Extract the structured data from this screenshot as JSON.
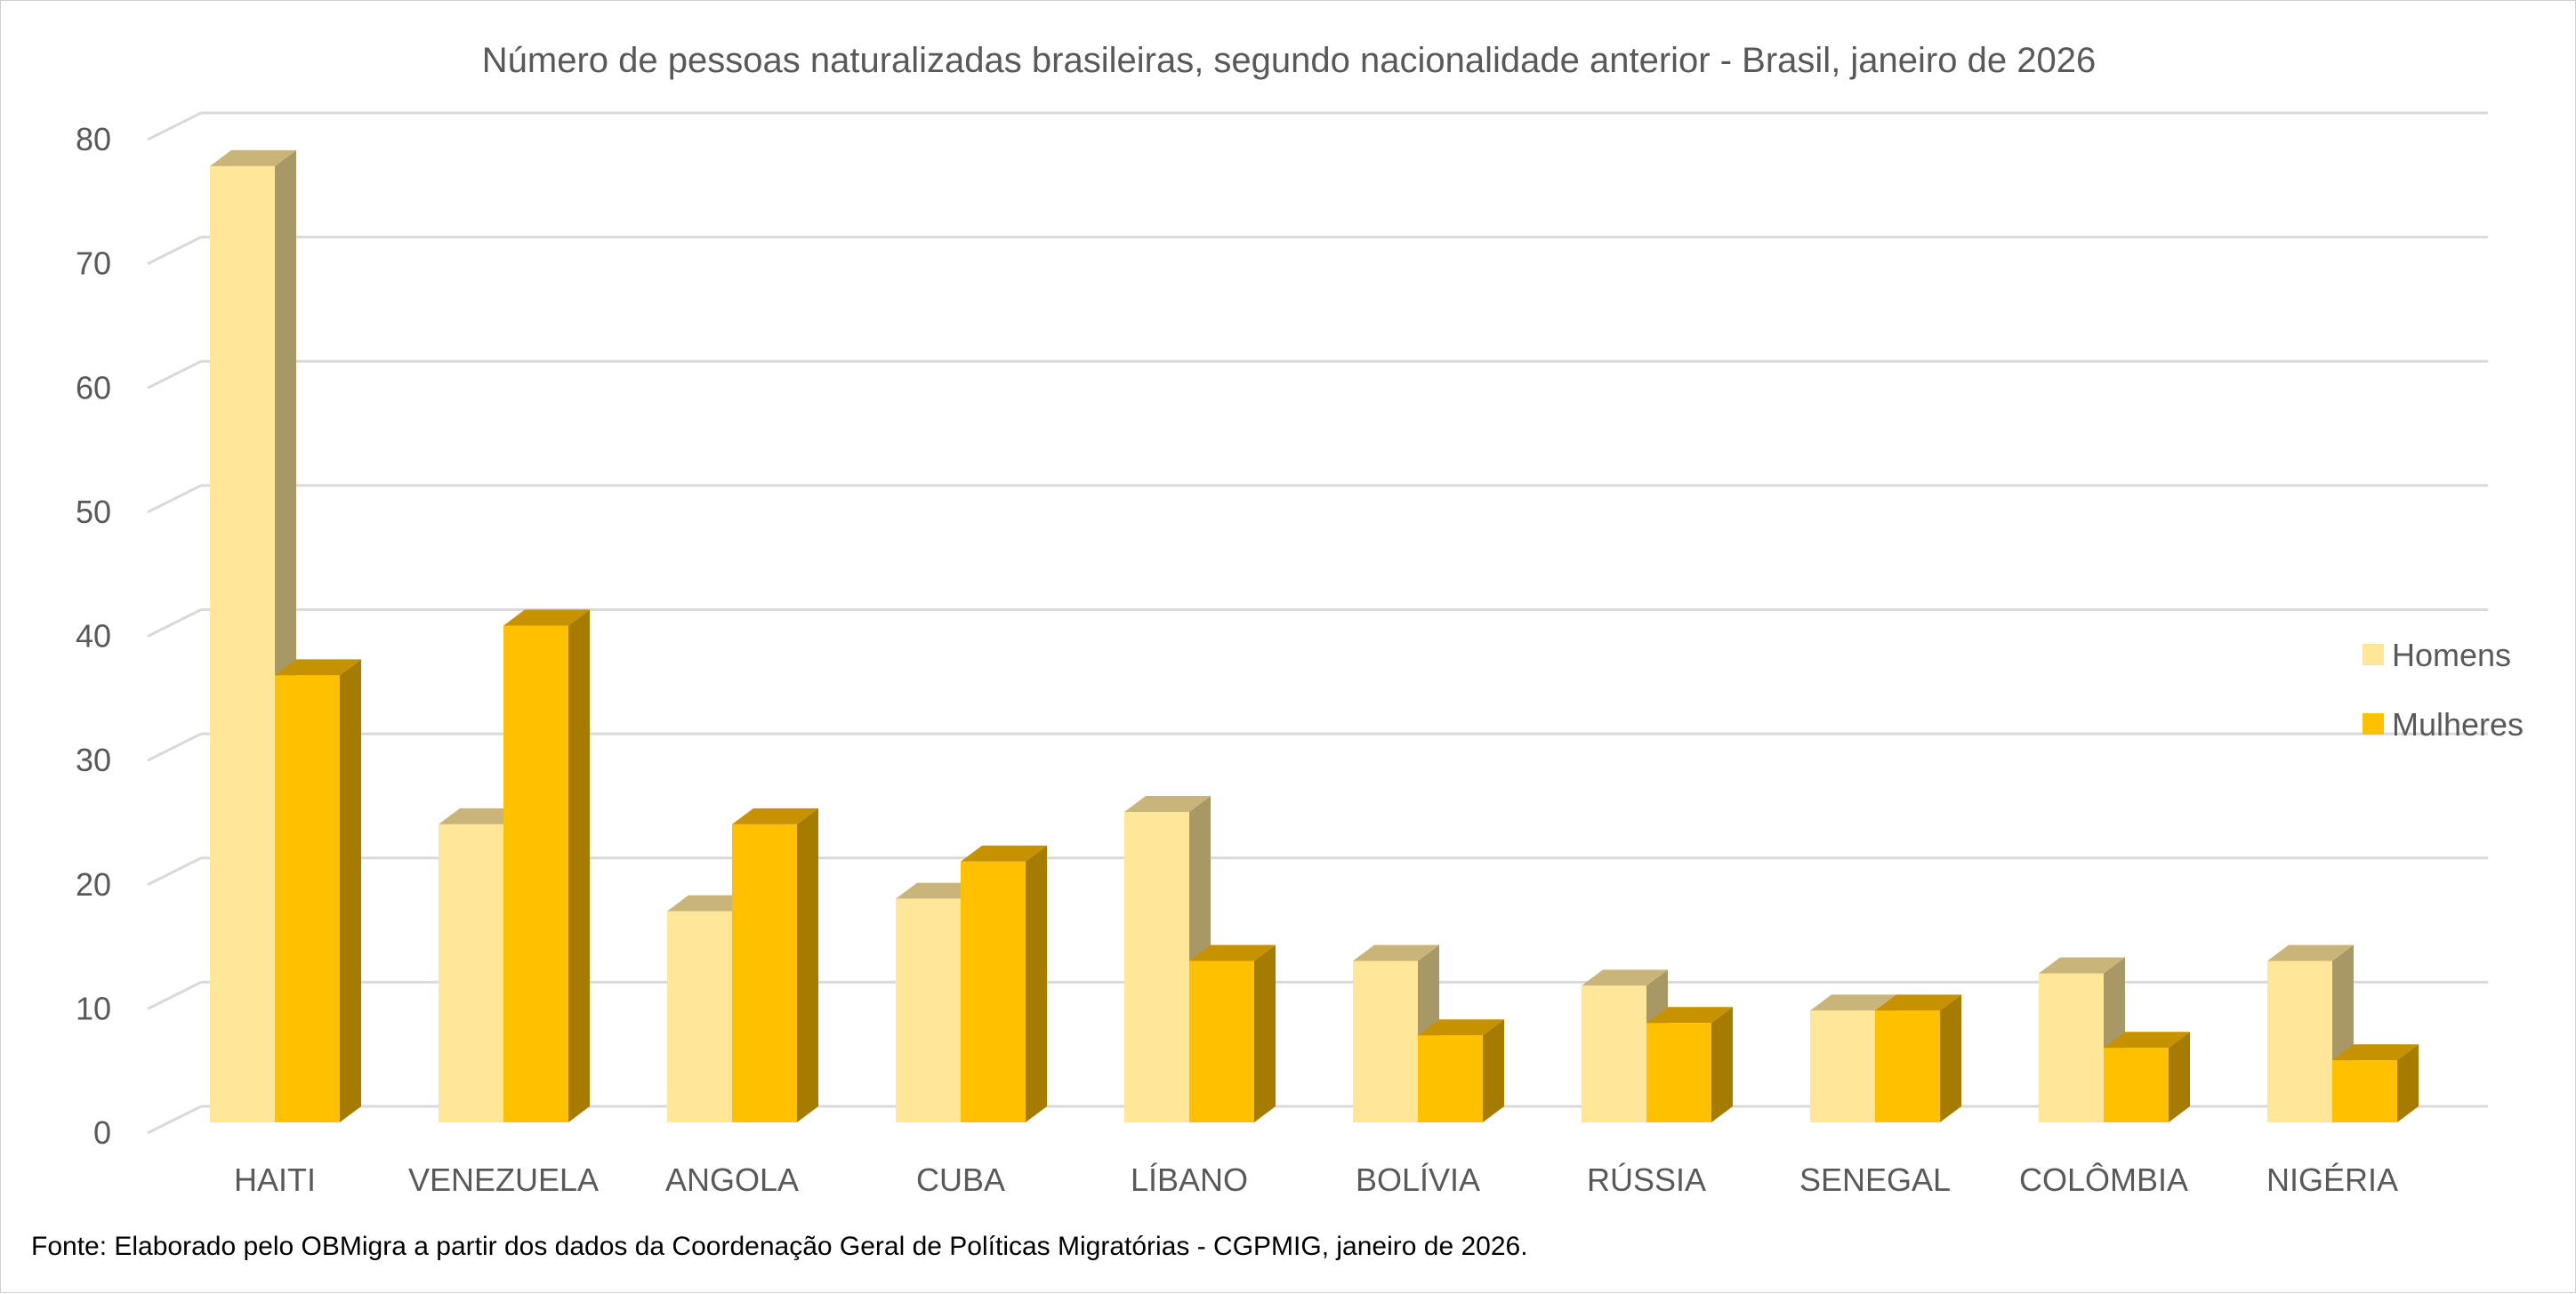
{
  "chart_data": {
    "type": "bar",
    "title": "Número de pessoas naturalizadas brasileiras, segundo nacionalidade anterior - Brasil, janeiro de 2026",
    "categories": [
      "HAITI",
      "VENEZUELA",
      "ANGOLA",
      "CUBA",
      "LÍBANO",
      "BOLÍVIA",
      "RÚSSIA",
      "SENEGAL",
      "COLÔMBIA",
      "NIGÉRIA"
    ],
    "series": [
      {
        "name": "Homens",
        "values": [
          77,
          24,
          17,
          18,
          25,
          13,
          11,
          9,
          12,
          13
        ]
      },
      {
        "name": "Mulheres",
        "values": [
          36,
          40,
          24,
          21,
          13,
          7,
          8,
          9,
          6,
          5
        ]
      }
    ],
    "xlabel": "",
    "ylabel": "",
    "ylim": [
      0,
      80
    ],
    "yticks": [
      "0",
      "10",
      "20",
      "30",
      "40",
      "50",
      "60",
      "70",
      "80"
    ],
    "grid": true,
    "legend_position": "right",
    "colors": {
      "Homens": {
        "front": "#FFE699",
        "top": "#C9B57A",
        "side": "#A89866"
      },
      "Mulheres": {
        "front": "#FFC000",
        "top": "#C79200",
        "side": "#A67C00"
      },
      "grid": "#D9D9D9",
      "text": "#595959"
    }
  },
  "source_note": "Fonte: Elaborado pelo OBMigra a partir dos dados da Coordenação Geral de Políticas Migratórias - CGPMIG, janeiro de 2026."
}
